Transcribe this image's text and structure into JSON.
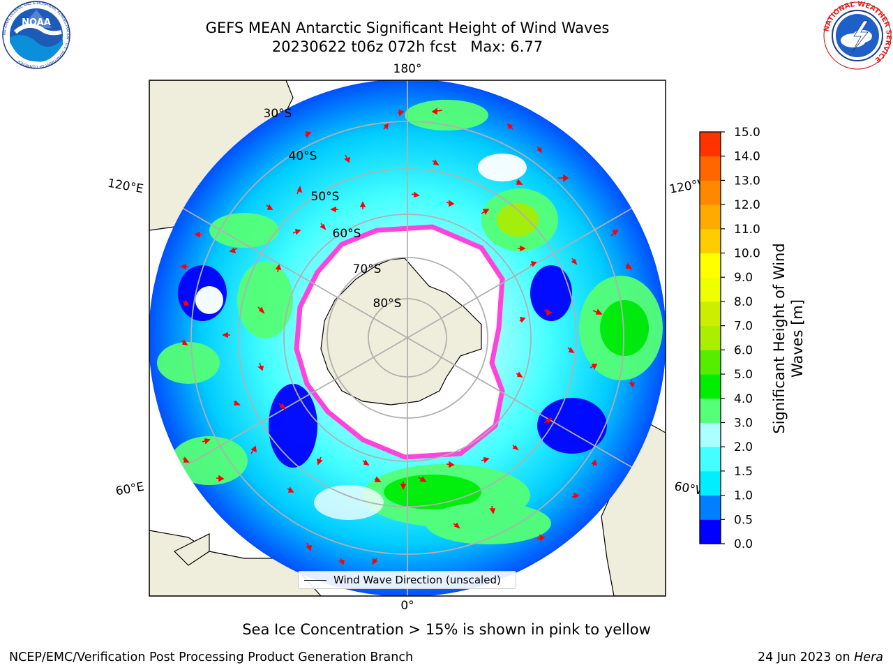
{
  "header": {
    "title_line1": "GEFS MEAN Antarctic Significant Height of Wind Waves",
    "title_line2": "20230622 t06z 072h fcst   Max: 6.77"
  },
  "logos": {
    "left": {
      "icon": "noaa-logo-icon",
      "text": "NOAA",
      "ring_text": "NATIONAL OCEANIC AND ATMOSPHERIC ADMINISTRATION · U.S. DEPARTMENT OF COMMERCE"
    },
    "right": {
      "icon": "nws-logo-icon",
      "ring_text": "NATIONAL WEATHER SERVICE"
    }
  },
  "map": {
    "projection": "south-polar-stereographic",
    "longitude_labels": {
      "top": "180°",
      "bottom": "0°",
      "left_upper": "120°E",
      "left_lower": "60°E",
      "right_upper": "120°W",
      "right_lower": "60°W"
    },
    "latitude_labels": [
      "30°S",
      "40°S",
      "50°S",
      "60°S",
      "70°S",
      "80°S"
    ],
    "colors": {
      "land": "#efeddb",
      "ocean_low": "#0000ff",
      "ice_edge": "#ff44dd",
      "vector": "#ff0000"
    }
  },
  "legend": {
    "label": "Wind Wave Direction (unscaled)"
  },
  "colorbar": {
    "label_line1": "Significant Height of Wind",
    "label_line2": "Waves [m]",
    "ticks": [
      "0.0",
      "0.5",
      "1.0",
      "1.5",
      "2.0",
      "3.0",
      "4.0",
      "5.0",
      "6.0",
      "7.0",
      "8.0",
      "9.0",
      "10.0",
      "11.0",
      "12.0",
      "13.0",
      "14.0",
      "15.0"
    ],
    "colors": [
      "#0000ff",
      "#0080ff",
      "#00eeff",
      "#44ffff",
      "#aaffff",
      "#55ff77",
      "#00ee00",
      "#55ee00",
      "#aaee00",
      "#ccee00",
      "#eeff00",
      "#ffff00",
      "#ffcc00",
      "#ffaa00",
      "#ff8800",
      "#ff6600",
      "#ff3300",
      "#ff0000"
    ]
  },
  "note": "Sea Ice Concentration > 15% is shown in pink to yellow",
  "footer": {
    "left": "NCEP/EMC/Verification Post Processing Product Generation Branch",
    "right_prefix": "24 Jun 2023 on ",
    "right_host": "Hera"
  }
}
